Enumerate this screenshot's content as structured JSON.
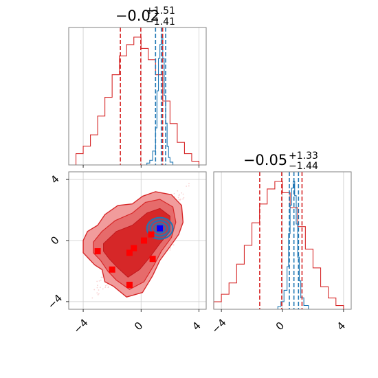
{
  "colors": {
    "red": "#d62728",
    "blue": "#1f77b4",
    "marker_blue": "#0000ff",
    "marker_red": "#ff0000",
    "grid": "#cccccc",
    "axis": "#808080",
    "fill_light": "#f19c9c",
    "fill_dark": "#d62728"
  },
  "chart_data": [
    {
      "type": "histogram",
      "panel": "marginal-x",
      "title_main": "−0.02",
      "title_sup": "+1.51",
      "title_sub": "−1.41",
      "xlim": [
        -5,
        4.5
      ],
      "xticks": [
        -4,
        0,
        4
      ],
      "grid": true,
      "vlines_red": [
        -1.43,
        -0.02,
        1.49
      ],
      "vlines_blue": [
        1.0,
        1.4,
        1.7
      ],
      "series": [
        {
          "color": "#d62728",
          "bin_edges": [
            -4.5,
            -4.0,
            -3.5,
            -3.0,
            -2.5,
            -2.0,
            -1.5,
            -1.0,
            -0.5,
            0.0,
            0.5,
            1.0,
            1.5,
            2.0,
            2.5,
            3.0,
            3.5,
            4.0
          ],
          "counts": [
            0.3,
            0.5,
            0.8,
            1.3,
            1.8,
            2.4,
            2.9,
            3.2,
            3.4,
            3.1,
            2.8,
            2.4,
            1.7,
            1.1,
            0.6,
            0.3,
            0.1
          ]
        },
        {
          "color": "#1f77b4",
          "bin_edges": [
            0.4,
            0.6,
            0.8,
            1.0,
            1.1,
            1.2,
            1.3,
            1.4,
            1.5,
            1.6,
            1.7,
            1.8,
            1.9,
            2.0,
            2.2
          ],
          "counts": [
            0.2,
            0.5,
            1.5,
            4.0,
            8.0,
            11.5,
            13.0,
            13.8,
            11.5,
            7.5,
            4.5,
            2.0,
            0.8,
            0.3
          ]
        }
      ]
    },
    {
      "type": "contour",
      "panel": "joint",
      "xlim": [
        -5,
        4.5
      ],
      "ylim": [
        -4.5,
        4.5
      ],
      "xticks": [
        -4,
        0,
        4
      ],
      "yticks": [
        -4,
        0,
        4
      ],
      "grid": true,
      "markers_red": [
        [
          -3.0,
          -0.7
        ],
        [
          -2.0,
          -1.9
        ],
        [
          -0.8,
          -0.8
        ],
        [
          -0.5,
          -0.5
        ],
        [
          0.2,
          0.0
        ],
        [
          0.7,
          0.4
        ],
        [
          0.8,
          -1.2
        ],
        [
          -0.8,
          -2.9
        ]
      ],
      "marker_blue": [
        1.3,
        0.8
      ]
    },
    {
      "type": "histogram",
      "panel": "marginal-y",
      "title_main": "−0.05",
      "title_sup": "+1.33",
      "title_sub": "−1.44",
      "xlim": [
        -4.5,
        4.5
      ],
      "xticks": [
        -4,
        0,
        4
      ],
      "grid": true,
      "vlines_red": [
        -1.49,
        -0.05,
        1.28
      ],
      "vlines_blue": [
        0.45,
        0.75,
        1.05
      ],
      "series": [
        {
          "color": "#d62728",
          "bin_edges": [
            -4.5,
            -4.0,
            -3.5,
            -3.0,
            -2.5,
            -2.0,
            -1.5,
            -1.0,
            -0.5,
            0.0,
            0.5,
            1.0,
            1.5,
            2.0,
            2.5,
            3.0,
            3.5,
            4.0
          ],
          "counts": [
            0.2,
            0.4,
            0.7,
            1.2,
            1.7,
            2.3,
            2.8,
            3.2,
            3.4,
            3.1,
            2.7,
            2.2,
            1.6,
            1.1,
            0.6,
            0.3,
            0.1
          ]
        },
        {
          "color": "#1f77b4",
          "bin_edges": [
            -0.3,
            -0.1,
            0.1,
            0.3,
            0.4,
            0.5,
            0.6,
            0.7,
            0.8,
            0.9,
            1.0,
            1.1,
            1.2,
            1.4,
            1.7
          ],
          "counts": [
            0.3,
            0.8,
            2.0,
            4.5,
            8.0,
            11.0,
            12.8,
            13.5,
            12.0,
            9.0,
            5.5,
            3.0,
            1.2,
            0.4
          ]
        }
      ]
    }
  ]
}
